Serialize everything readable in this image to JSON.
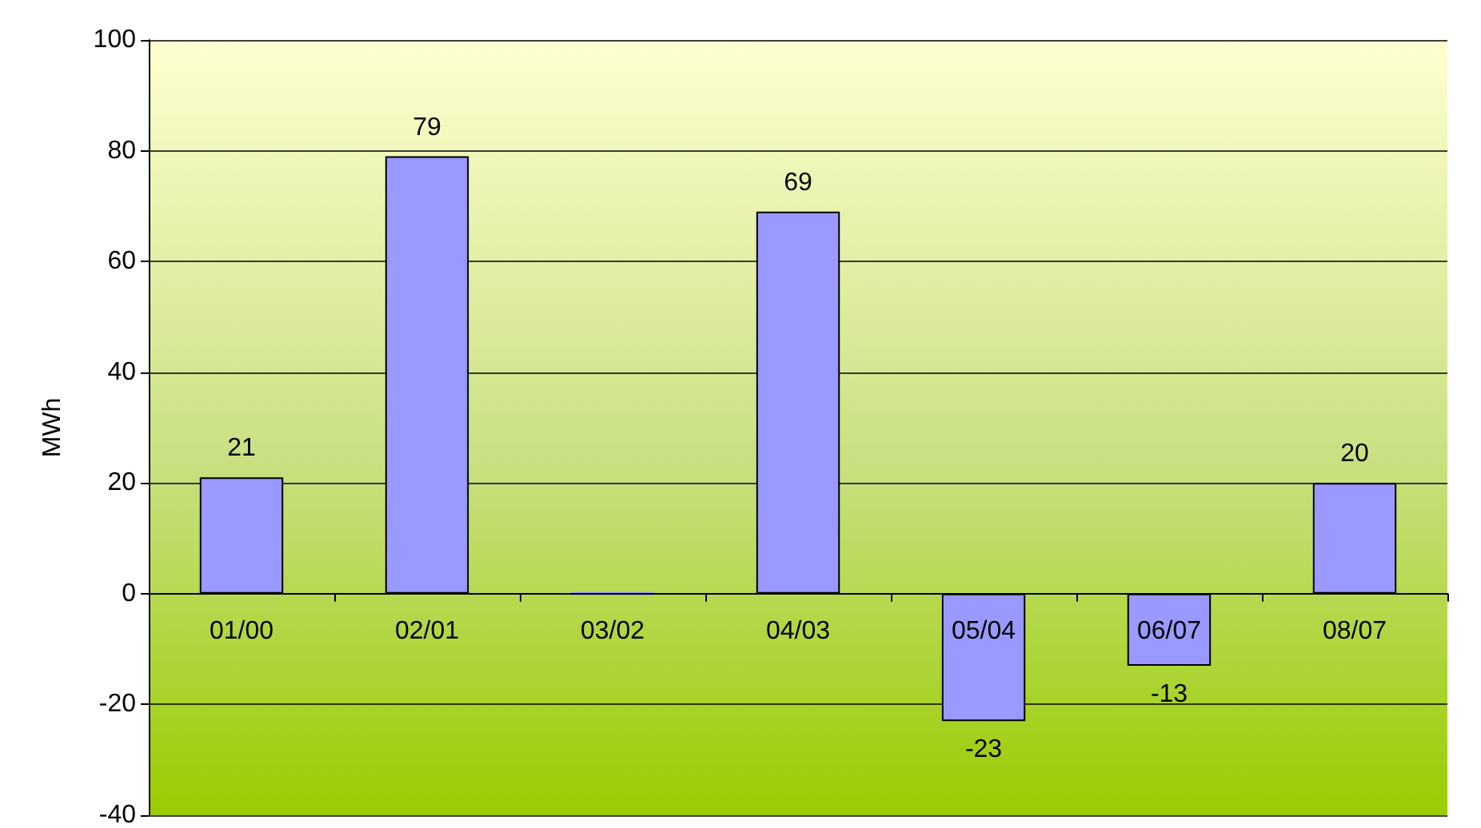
{
  "chart_data": {
    "type": "bar",
    "ylabel": "MWh",
    "categories": [
      "01/00",
      "02/01",
      "03/02",
      "04/03",
      "05/04",
      "06/07",
      "08/07"
    ],
    "values": [
      21,
      79,
      0,
      69,
      -23,
      -13,
      20
    ],
    "value_labels": [
      "21",
      "79",
      null,
      "69",
      "-23",
      "-13",
      "20"
    ],
    "color": "#9999ff",
    "ylim": [
      -40,
      100
    ],
    "yticks": [
      -40,
      -20,
      0,
      20,
      40,
      60,
      80,
      100
    ],
    "grid": "y"
  }
}
